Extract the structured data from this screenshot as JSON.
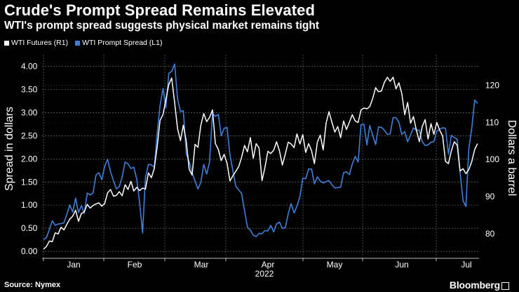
{
  "header": {
    "title": "Crude's Prompt Spread Remains Elevated",
    "subtitle": "WTI's prompt spread suggests physical market remains tight"
  },
  "footer": {
    "source": "Source: Nymex",
    "brand": "Bloomberg"
  },
  "colors": {
    "background": "#000000",
    "futures": "#ffffff",
    "spread": "#3f7fd9",
    "grid": "#6a6a6a"
  },
  "chart_data": {
    "type": "line",
    "xlabel": "2022",
    "x_ticks": [
      "Jan",
      "Feb",
      "Mar",
      "Apr",
      "May",
      "Jun",
      "Jul"
    ],
    "y_left": {
      "label": "Spread in dollars",
      "ticks": [
        "0.00",
        "0.50",
        "1.00",
        "1.50",
        "2.00",
        "2.50",
        "3.00",
        "3.50",
        "4.00"
      ],
      "range": [
        -0.15,
        4.25
      ]
    },
    "y_right": {
      "label": "Dollars a barrel",
      "ticks": [
        "80",
        "90",
        "100",
        "110",
        "120"
      ],
      "range": [
        73.32,
        128.29
      ]
    },
    "series": [
      {
        "name": "WTI Futures (R1)",
        "axis": "right",
        "points": [
          [
            0.5,
            75.8
          ],
          [
            1.5,
            76.5
          ],
          [
            2.5,
            78
          ],
          [
            3.5,
            77.8
          ],
          [
            4.5,
            80.2
          ],
          [
            5.5,
            79.9
          ],
          [
            6.5,
            81.7
          ],
          [
            7.5,
            81
          ],
          [
            8.5,
            82.5
          ],
          [
            9.5,
            83.9
          ],
          [
            10.5,
            84.7
          ],
          [
            11.5,
            86.3
          ],
          [
            12.5,
            83.3
          ],
          [
            13.5,
            85.4
          ],
          [
            14.5,
            85.9
          ],
          [
            15.5,
            87.9
          ],
          [
            16.5,
            86.9
          ],
          [
            17.5,
            87.6
          ],
          [
            18.5,
            88
          ],
          [
            19.5,
            88.3
          ],
          [
            20.5,
            87.4
          ],
          [
            21.5,
            88.1
          ],
          [
            22.5,
            91
          ],
          [
            23.5,
            91.9
          ],
          [
            24.5,
            90.1
          ],
          [
            25.5,
            90.3
          ],
          [
            26.5,
            91.3
          ],
          [
            27.5,
            90.2
          ],
          [
            28.5,
            93.2
          ],
          [
            29.5,
            91.9
          ],
          [
            30.5,
            94.1
          ],
          [
            31.5,
            91.5
          ],
          [
            32.5,
            92.5
          ],
          [
            33.5,
            91.6
          ],
          [
            34.5,
            92.3
          ],
          [
            35.5,
            92
          ],
          [
            36.5,
            96.4
          ],
          [
            37.5,
            95.1
          ],
          [
            38.5,
            97.5
          ],
          [
            39.5,
            103.4
          ],
          [
            40.5,
            110.6
          ],
          [
            41.5,
            112.1
          ],
          [
            42.5,
            116.2
          ],
          [
            43.5,
            120.3
          ],
          [
            44.5,
            122
          ],
          [
            45.5,
            115.4
          ],
          [
            46.5,
            108.4
          ],
          [
            47.5,
            105.1
          ],
          [
            48.5,
            109.3
          ],
          [
            49.5,
            104.9
          ],
          [
            50.5,
            97.4
          ],
          [
            51.5,
            95.8
          ],
          [
            52.5,
            104.1
          ],
          [
            53.5,
            103.3
          ],
          [
            54.5,
            109.3
          ],
          [
            55.5,
            112.4
          ],
          [
            56.5,
            110.2
          ],
          [
            57.5,
            111.4
          ],
          [
            58.5,
            113.4
          ],
          [
            59.5,
            104.3
          ],
          [
            60.5,
            102.7
          ],
          [
            61.5,
            99.7
          ],
          [
            62.5,
            101.4
          ],
          [
            63.5,
            99
          ],
          [
            64.5,
            94.2
          ],
          [
            65.5,
            95.6
          ],
          [
            66.5,
            96.8
          ],
          [
            67.5,
            98.1
          ],
          [
            68.5,
            100.6
          ],
          [
            69.5,
            103.8
          ],
          [
            70.5,
            102.1
          ],
          [
            71.5,
            105.9
          ],
          [
            72.5,
            100.3
          ],
          [
            73.5,
            104.3
          ],
          [
            74.5,
            103.1
          ],
          [
            75.5,
            94.3
          ],
          [
            76.5,
            97.8
          ],
          [
            77.5,
            102.2
          ],
          [
            78.5,
            101.6
          ],
          [
            79.5,
            102.5
          ],
          [
            80.5,
            104.8
          ],
          [
            81.5,
            102.3
          ],
          [
            82.5,
            98.5
          ],
          [
            83.5,
            101.5
          ],
          [
            84.5,
            104.7
          ],
          [
            85.5,
            104.2
          ],
          [
            86.5,
            103.2
          ],
          [
            87.5,
            106.9
          ],
          [
            88.5,
            104.2
          ],
          [
            89.5,
            106.7
          ],
          [
            90.5,
            101.9
          ],
          [
            91.5,
            104.3
          ],
          [
            92.5,
            102.4
          ],
          [
            93.5,
            98.9
          ],
          [
            94.5,
            104.7
          ],
          [
            95.5,
            106.6
          ],
          [
            96.5,
            102.6
          ],
          [
            97.5,
            109.8
          ],
          [
            98.5,
            112.9
          ],
          [
            99.5,
            110
          ],
          [
            100.5,
            107.4
          ],
          [
            101.5,
            108.9
          ],
          [
            102.5,
            105.9
          ],
          [
            103.5,
            110.4
          ],
          [
            104.5,
            108.1
          ],
          [
            105.5,
            110.1
          ],
          [
            106.5,
            112.1
          ],
          [
            107.5,
            110.4
          ],
          [
            108.5,
            110
          ],
          [
            109.5,
            113.4
          ],
          [
            110.5,
            113.9
          ],
          [
            111.5,
            113.7
          ],
          [
            112.5,
            114.3
          ],
          [
            113.5,
            116.5
          ],
          [
            114.5,
            119.4
          ],
          [
            115.5,
            118.3
          ],
          [
            116.5,
            118.5
          ],
          [
            117.5,
            120.8
          ],
          [
            118.5,
            122.2
          ],
          [
            119.5,
            121.1
          ],
          [
            120.5,
            122.2
          ],
          [
            121.5,
            119.1
          ],
          [
            122.5,
            120.7
          ],
          [
            123.5,
            117.8
          ],
          [
            124.5,
            112.1
          ],
          [
            125.5,
            115.4
          ],
          [
            126.5,
            109.8
          ],
          [
            127.5,
            111.6
          ],
          [
            128.5,
            107.9
          ],
          [
            129.5,
            104.8
          ],
          [
            130.5,
            108.9
          ],
          [
            131.5,
            110.8
          ],
          [
            132.5,
            105.5
          ],
          [
            133.5,
            109.7
          ],
          [
            134.5,
            106.8
          ],
          [
            135.5,
            110
          ],
          [
            136.5,
            107.9
          ],
          [
            137.5,
            106.4
          ],
          [
            138.5,
            99.5
          ],
          [
            139.5,
            98.9
          ],
          [
            140.5,
            102.3
          ],
          [
            141.5,
            104.8
          ],
          [
            142.5,
            103.9
          ],
          [
            143.5,
            96.9
          ],
          [
            144.5,
            97.5
          ],
          [
            145.5,
            96.2
          ],
          [
            146.5,
            97.3
          ],
          [
            147.5,
            99.4
          ],
          [
            148.5,
            102.7
          ],
          [
            149.5,
            104.3
          ]
        ]
      },
      {
        "name": "WTI Prompt Spread (L1)",
        "axis": "left",
        "points": [
          [
            0.5,
            0.25
          ],
          [
            1.5,
            0.3
          ],
          [
            2.5,
            0.47
          ],
          [
            3.5,
            0.66
          ],
          [
            4.5,
            0.56
          ],
          [
            5.5,
            0.59
          ],
          [
            6.5,
            0.6
          ],
          [
            7.5,
            0.62
          ],
          [
            8.5,
            0.8
          ],
          [
            9.5,
            1
          ],
          [
            10.5,
            0.85
          ],
          [
            11.5,
            1.15
          ],
          [
            12.5,
            0.84
          ],
          [
            13.5,
            0.99
          ],
          [
            14.5,
            0.82
          ],
          [
            15.5,
            1.26
          ],
          [
            16.5,
            1.22
          ],
          [
            17.5,
            1.26
          ],
          [
            18.5,
            1.65
          ],
          [
            19.5,
            1.7
          ],
          [
            20.5,
            1.55
          ],
          [
            21.5,
            1.84
          ],
          [
            22.5,
            1.99
          ],
          [
            23.5,
            1.72
          ],
          [
            24.5,
            1.53
          ],
          [
            25.5,
            1.35
          ],
          [
            26.5,
            1.4
          ],
          [
            27.5,
            1.61
          ],
          [
            28.5,
            1.93
          ],
          [
            29.5,
            1.89
          ],
          [
            30.5,
            1.79
          ],
          [
            31.5,
            1.82
          ],
          [
            32.5,
            1.56
          ],
          [
            33.5,
            1.05
          ],
          [
            34.5,
            0.4
          ],
          [
            35.5,
            1.6
          ],
          [
            36.5,
            1.88
          ],
          [
            37.5,
            1.87
          ],
          [
            38.5,
            1.82
          ],
          [
            39.5,
            2.55
          ],
          [
            40.5,
            3.15
          ],
          [
            41.5,
            3.52
          ],
          [
            42.5,
            3.1
          ],
          [
            43.5,
            3.85
          ],
          [
            44.5,
            3.89
          ],
          [
            45.5,
            4.05
          ],
          [
            46.5,
            3.31
          ],
          [
            47.5,
            3.02
          ],
          [
            48.5,
            3.04
          ],
          [
            49.5,
            2.1
          ],
          [
            50.5,
            1.95
          ],
          [
            51.5,
            1.7
          ],
          [
            52.5,
            1.52
          ],
          [
            53.5,
            1.35
          ],
          [
            54.5,
            1.49
          ],
          [
            55.5,
            1.88
          ],
          [
            56.5,
            1.67
          ],
          [
            57.5,
            1.94
          ],
          [
            58.5,
            2.98
          ],
          [
            59.5,
            2.92
          ],
          [
            60.5,
            2.96
          ],
          [
            61.5,
            2.5
          ],
          [
            62.5,
            2.66
          ],
          [
            63.5,
            2.68
          ],
          [
            64.5,
            2.08
          ],
          [
            65.5,
            1.75
          ],
          [
            66.5,
            1.41
          ],
          [
            67.5,
            1.33
          ],
          [
            68.5,
            1.25
          ],
          [
            69.5,
            0.88
          ],
          [
            70.5,
            0.52
          ],
          [
            71.5,
            0.46
          ],
          [
            72.5,
            0.35
          ],
          [
            73.5,
            0.32
          ],
          [
            74.5,
            0.39
          ],
          [
            75.5,
            0.38
          ],
          [
            76.5,
            0.45
          ],
          [
            77.5,
            0.44
          ],
          [
            78.5,
            0.56
          ],
          [
            79.5,
            0.42
          ],
          [
            80.5,
            0.59
          ],
          [
            81.5,
            0.63
          ],
          [
            82.5,
            0.5
          ],
          [
            83.5,
            0.51
          ],
          [
            84.5,
            0.82
          ],
          [
            85.5,
            1.03
          ],
          [
            86.5,
            0.83
          ],
          [
            87.5,
            0.98
          ],
          [
            88.5,
            1.18
          ],
          [
            89.5,
            1.58
          ],
          [
            90.5,
            1.57
          ],
          [
            91.5,
            1.78
          ],
          [
            92.5,
            1.78
          ],
          [
            93.5,
            1.46
          ],
          [
            94.5,
            1.61
          ],
          [
            95.5,
            1.52
          ],
          [
            96.5,
            1.48
          ],
          [
            97.5,
            1.51
          ],
          [
            98.5,
            1.53
          ],
          [
            99.5,
            1.44
          ],
          [
            100.5,
            1.37
          ],
          [
            101.5,
            1.38
          ],
          [
            102.5,
            1.39
          ],
          [
            103.5,
            1.7
          ],
          [
            104.5,
            1.72
          ],
          [
            105.5,
            1.66
          ],
          [
            106.5,
            1.89
          ],
          [
            107.5,
            2.05
          ],
          [
            108.5,
            1.93
          ],
          [
            109.5,
            2.74
          ],
          [
            110.5,
            2.75
          ],
          [
            111.5,
            2.3
          ],
          [
            112.5,
            2.72
          ],
          [
            113.5,
            2.5
          ],
          [
            114.5,
            2.31
          ],
          [
            115.5,
            2.69
          ],
          [
            116.5,
            2.68
          ],
          [
            117.5,
            2.62
          ],
          [
            118.5,
            2.53
          ],
          [
            119.5,
            2.54
          ],
          [
            120.5,
            2.89
          ],
          [
            121.5,
            2.89
          ],
          [
            122.5,
            2.79
          ],
          [
            123.5,
            2.53
          ],
          [
            124.5,
            2.59
          ],
          [
            125.5,
            2.37
          ],
          [
            126.5,
            2.52
          ],
          [
            127.5,
            2.67
          ],
          [
            128.5,
            2.62
          ],
          [
            129.5,
            2.62
          ],
          [
            130.5,
            2.37
          ],
          [
            131.5,
            2.29
          ],
          [
            132.5,
            2.3
          ],
          [
            133.5,
            2.36
          ],
          [
            134.5,
            2.37
          ],
          [
            135.5,
            2.6
          ],
          [
            136.5,
            2.64
          ],
          [
            137.5,
            2.67
          ],
          [
            138.5,
            2.66
          ],
          [
            139.5,
            2.1
          ],
          [
            140.5,
            2.51
          ],
          [
            141.5,
            2.46
          ],
          [
            142.5,
            2.42
          ],
          [
            143.5,
            1.71
          ],
          [
            144.5,
            1.1
          ],
          [
            145.5,
            0.97
          ],
          [
            146.5,
            2.23
          ],
          [
            147.5,
            2.66
          ],
          [
            148.5,
            3.27
          ],
          [
            149.5,
            3.2
          ]
        ]
      }
    ]
  }
}
